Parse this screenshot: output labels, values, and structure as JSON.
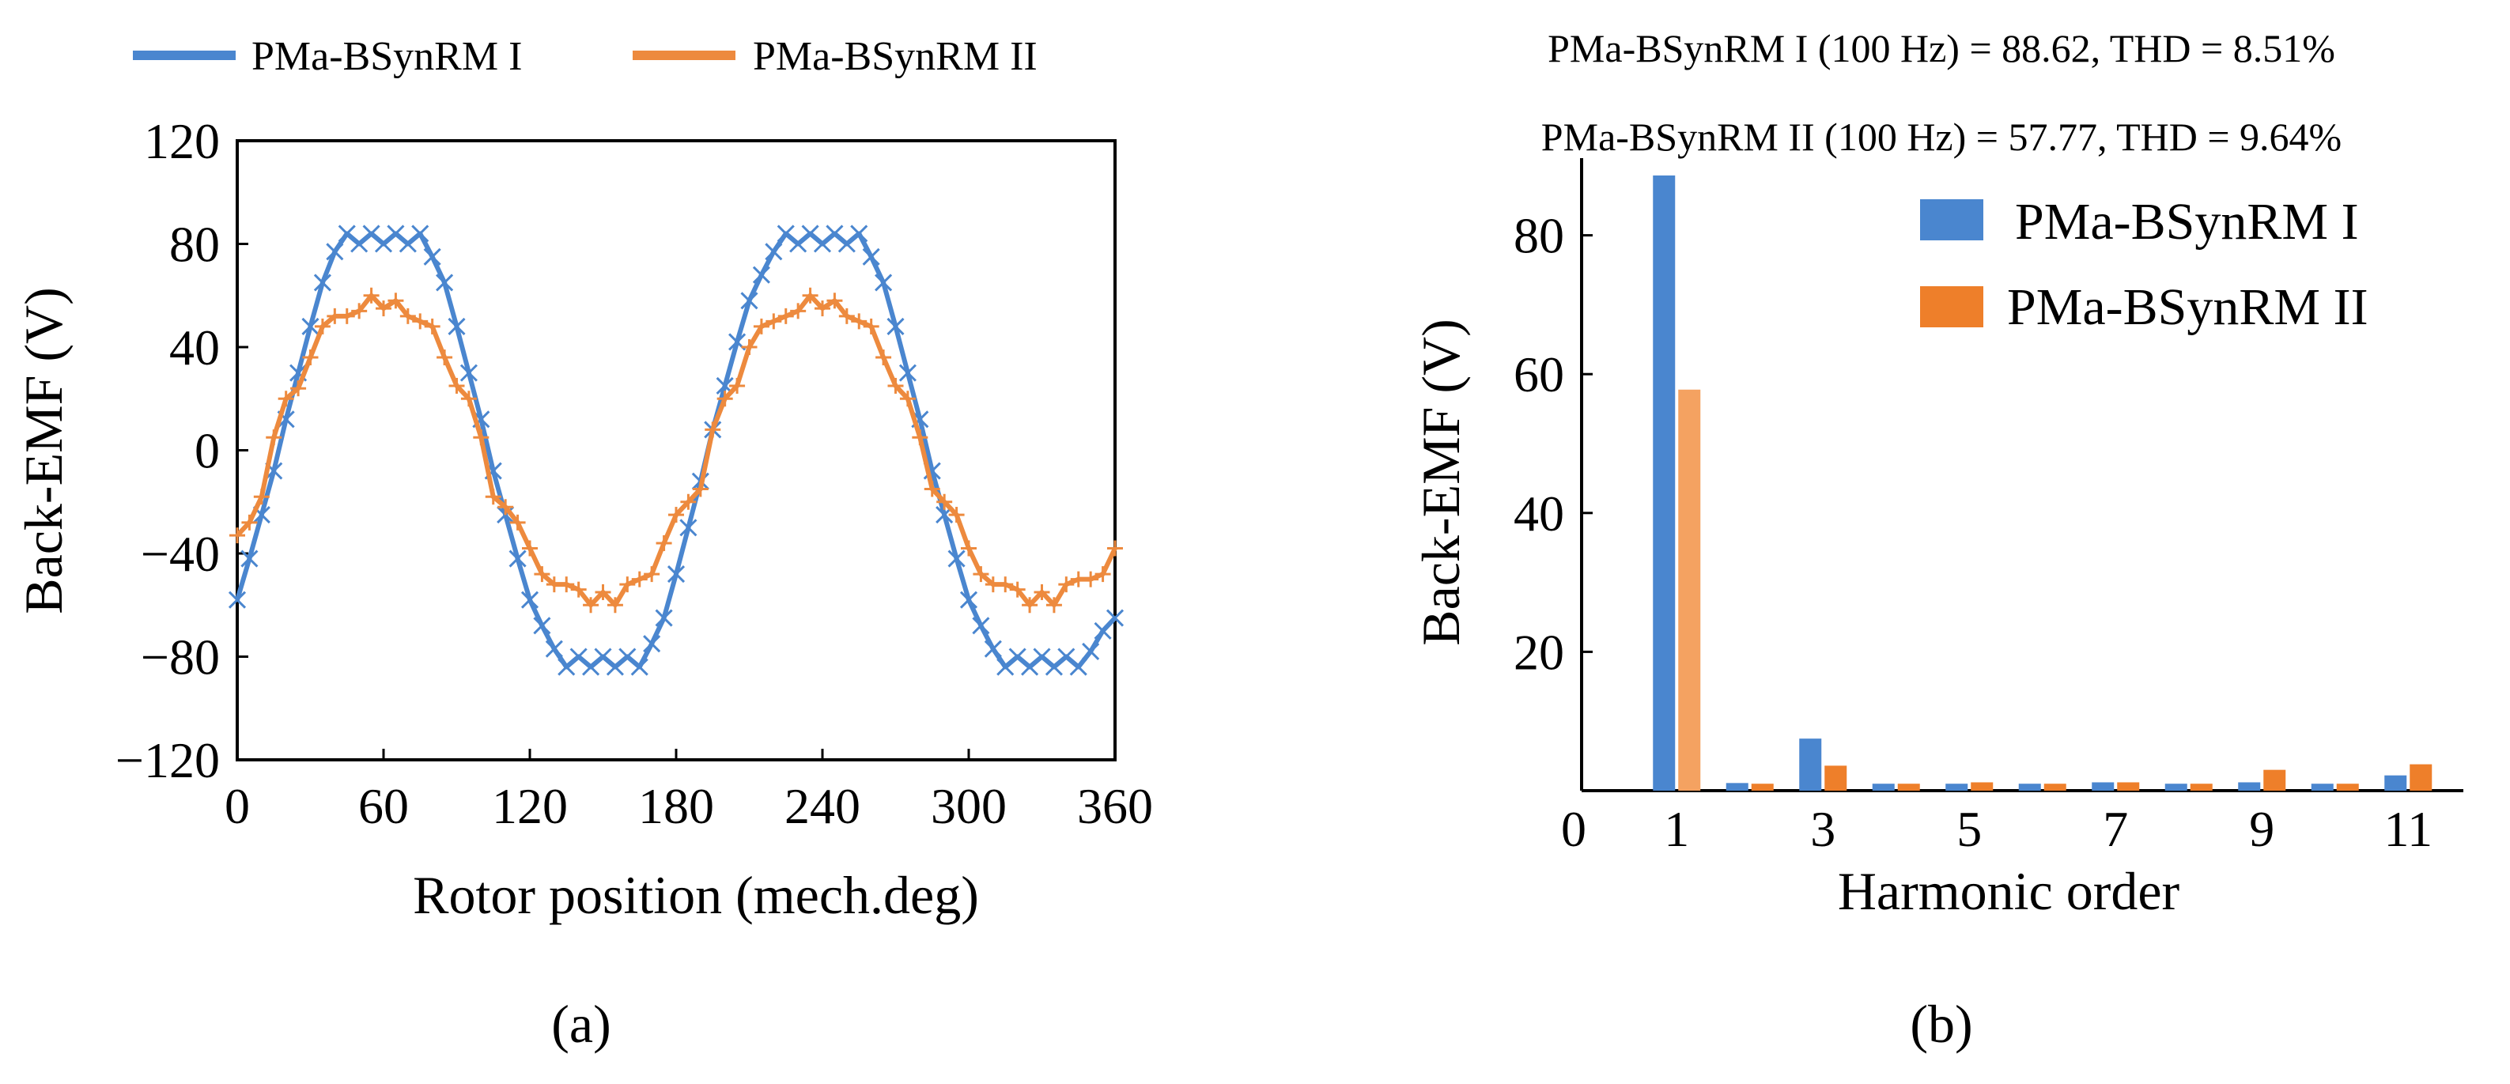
{
  "chart_data": [
    {
      "panel": "a",
      "type": "line",
      "caption": "(a)",
      "xlabel": "Rotor position  (mech.deg)",
      "ylabel": "Back-EMF (V)",
      "xlim": [
        0,
        360
      ],
      "ylim": [
        -120,
        120
      ],
      "xticks": [
        0,
        60,
        120,
        180,
        240,
        300,
        360
      ],
      "yticks": [
        120,
        80,
        40,
        0,
        -40,
        -80,
        -120
      ],
      "ytick_labels": [
        "120",
        "80",
        "40",
        "0",
        "−40",
        "−80",
        "−120"
      ],
      "legend": "top",
      "series": [
        {
          "name": "PMa-BSynRM I",
          "color": "#4a86cf",
          "marker": "x",
          "x": [
            0,
            5,
            10,
            15,
            20,
            25,
            30,
            35,
            40,
            45,
            50,
            55,
            60,
            65,
            70,
            75,
            80,
            85,
            90,
            95,
            100,
            105,
            110,
            115,
            120,
            125,
            130,
            135,
            140,
            145,
            150,
            155,
            160,
            165,
            170,
            175,
            180,
            185,
            190,
            195,
            200,
            205,
            210,
            215,
            220,
            225,
            230,
            235,
            240,
            245,
            250,
            255,
            260,
            265,
            270,
            275,
            280,
            285,
            290,
            295,
            300,
            305,
            310,
            315,
            320,
            325,
            330,
            335,
            340,
            345,
            350,
            355,
            360
          ],
          "y": [
            -58,
            -42,
            -25,
            -8,
            12,
            30,
            48,
            65,
            77,
            84,
            80,
            84,
            80,
            84,
            80,
            84,
            75,
            65,
            48,
            30,
            12,
            -8,
            -25,
            -42,
            -58,
            -68,
            -77,
            -84,
            -80,
            -84,
            -80,
            -84,
            -80,
            -84,
            -75,
            -65,
            -48,
            -30,
            -12,
            8,
            25,
            42,
            58,
            68,
            77,
            84,
            80,
            84,
            80,
            84,
            80,
            84,
            75,
            65,
            48,
            30,
            12,
            -8,
            -25,
            -42,
            -58,
            -68,
            -77,
            -84,
            -80,
            -84,
            -80,
            -84,
            -80,
            -84,
            -78,
            -70,
            -65
          ]
        },
        {
          "name": "PMa-BSynRM II",
          "color": "#ed8a3e",
          "marker": "+",
          "x": [
            0,
            5,
            10,
            15,
            20,
            25,
            30,
            35,
            40,
            45,
            50,
            55,
            60,
            65,
            70,
            75,
            80,
            85,
            90,
            95,
            100,
            105,
            110,
            115,
            120,
            125,
            130,
            135,
            140,
            145,
            150,
            155,
            160,
            165,
            170,
            175,
            180,
            185,
            190,
            195,
            200,
            205,
            210,
            215,
            220,
            225,
            230,
            235,
            240,
            245,
            250,
            255,
            260,
            265,
            270,
            275,
            280,
            285,
            290,
            295,
            300,
            305,
            310,
            315,
            320,
            325,
            330,
            335,
            340,
            345,
            350,
            355,
            360
          ],
          "y": [
            -33,
            -28,
            -18,
            5,
            20,
            24,
            36,
            48,
            52,
            52,
            54,
            60,
            55,
            58,
            52,
            50,
            48,
            36,
            25,
            20,
            5,
            -18,
            -22,
            -28,
            -38,
            -48,
            -52,
            -52,
            -54,
            -60,
            -55,
            -60,
            -52,
            -50,
            -48,
            -36,
            -25,
            -20,
            -15,
            8,
            20,
            25,
            40,
            48,
            50,
            52,
            54,
            60,
            55,
            58,
            52,
            50,
            48,
            36,
            25,
            20,
            5,
            -15,
            -20,
            -25,
            -38,
            -48,
            -52,
            -52,
            -54,
            -60,
            -55,
            -60,
            -52,
            -50,
            -50,
            -48,
            -38
          ]
        }
      ]
    },
    {
      "panel": "b",
      "type": "bar",
      "caption": "(b)",
      "xlabel": "Harmonic order",
      "ylabel": "Back-EMF (V)",
      "xlim": [
        0,
        11.5
      ],
      "ylim": [
        0,
        90
      ],
      "xticks": [
        0,
        1,
        3,
        5,
        7,
        9,
        11
      ],
      "yticks": [
        20,
        40,
        60,
        80
      ],
      "legend": "top-right",
      "annotations": [
        "PMa-BSynRM I (100 Hz) = 88.62, THD = 8.51%",
        "PMa-BSynRM II (100 Hz) = 57.77, THD = 9.64%"
      ],
      "categories": [
        1,
        2,
        3,
        4,
        5,
        6,
        7,
        8,
        9,
        10,
        11
      ],
      "series": [
        {
          "name": "PMa-BSynRM I",
          "color": "#4a86cf",
          "values": [
            88.62,
            1.1,
            7.5,
            1.0,
            1.0,
            1.0,
            1.2,
            1.0,
            1.2,
            1.0,
            2.2
          ]
        },
        {
          "name": "PMa-BSynRM II",
          "color": "#ee7f2a",
          "values": [
            57.77,
            1.0,
            3.6,
            1.0,
            1.2,
            1.0,
            1.2,
            1.0,
            3.0,
            1.0,
            3.8
          ]
        }
      ]
    }
  ]
}
